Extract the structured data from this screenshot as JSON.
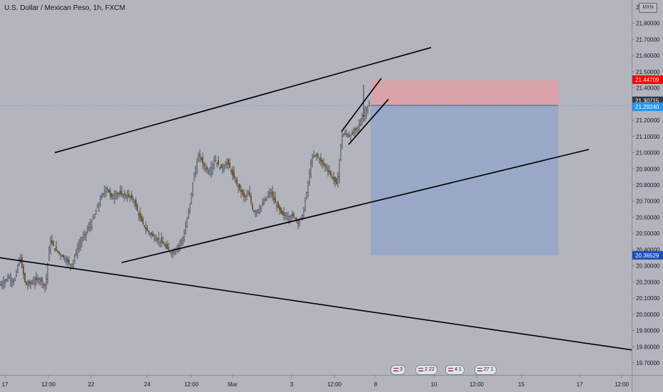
{
  "header": {
    "title": "U.S. Dollar / Mexican Peso, 1h, FXCM",
    "currency_badge": "MXN"
  },
  "price_axis": {
    "ticks": [
      "21.80000",
      "21.70000",
      "21.60000",
      "21.50000",
      "21.40000",
      "21.20000",
      "21.10000",
      "21.00000",
      "20.90000",
      "20.80000",
      "20.70000",
      "20.60000",
      "20.50000",
      "20.40000",
      "20.30000",
      "20.20000",
      "20.10000",
      "20.00000",
      "19.90000",
      "19.80000",
      "19.70000"
    ],
    "partial_top_tick": "2"
  },
  "price_tags": {
    "stop_loss": {
      "label": "21.44709",
      "color": "#ff0000"
    },
    "current": {
      "label": "21.30715",
      "color": "#363a45"
    },
    "entry": {
      "label": "21.29240",
      "color": "#2196f3"
    },
    "target": {
      "label": "20.36529",
      "color": "#1e4db7"
    }
  },
  "time_axis": {
    "labels": [
      "17",
      "12:00",
      "22",
      "24",
      "12:00",
      "Mar",
      "3",
      "12:00",
      "8",
      "10",
      "12:00",
      "15",
      "17",
      "12:00"
    ]
  },
  "events": [
    {
      "label": "3"
    },
    {
      "label": "2 22"
    },
    {
      "label": "4 1"
    },
    {
      "label": "27 1"
    }
  ],
  "chart_data": {
    "type": "candlestick",
    "symbol": "U.S. Dollar / Mexican Peso",
    "interval": "1h",
    "source": "FXCM",
    "ylim": [
      19.66,
      21.92
    ],
    "price_path": [
      [
        0,
        20.18
      ],
      [
        12,
        20.23
      ],
      [
        20,
        20.2
      ],
      [
        28,
        20.36
      ],
      [
        36,
        20.18
      ],
      [
        46,
        20.2
      ],
      [
        56,
        20.22
      ],
      [
        64,
        20.17
      ],
      [
        70,
        20.46
      ],
      [
        78,
        20.4
      ],
      [
        90,
        20.35
      ],
      [
        100,
        20.3
      ],
      [
        110,
        20.42
      ],
      [
        120,
        20.5
      ],
      [
        130,
        20.58
      ],
      [
        140,
        20.7
      ],
      [
        150,
        20.79
      ],
      [
        156,
        20.72
      ],
      [
        164,
        20.75
      ],
      [
        172,
        20.74
      ],
      [
        180,
        20.73
      ],
      [
        188,
        20.71
      ],
      [
        196,
        20.6
      ],
      [
        206,
        20.52
      ],
      [
        216,
        20.48
      ],
      [
        226,
        20.45
      ],
      [
        234,
        20.41
      ],
      [
        242,
        20.38
      ],
      [
        250,
        20.42
      ],
      [
        258,
        20.48
      ],
      [
        266,
        20.65
      ],
      [
        272,
        20.85
      ],
      [
        280,
        20.99
      ],
      [
        286,
        20.92
      ],
      [
        294,
        20.88
      ],
      [
        302,
        20.96
      ],
      [
        310,
        20.9
      ],
      [
        320,
        20.94
      ],
      [
        328,
        20.85
      ],
      [
        336,
        20.78
      ],
      [
        344,
        20.72
      ],
      [
        350,
        20.75
      ],
      [
        356,
        20.63
      ],
      [
        364,
        20.65
      ],
      [
        372,
        20.7
      ],
      [
        380,
        20.76
      ],
      [
        388,
        20.68
      ],
      [
        396,
        20.62
      ],
      [
        404,
        20.6
      ],
      [
        412,
        20.61
      ],
      [
        420,
        20.57
      ],
      [
        426,
        20.62
      ],
      [
        432,
        20.78
      ],
      [
        438,
        20.96
      ],
      [
        444,
        20.99
      ],
      [
        452,
        20.94
      ],
      [
        460,
        20.9
      ],
      [
        468,
        20.84
      ],
      [
        474,
        20.8
      ],
      [
        480,
        21.1
      ],
      [
        486,
        21.12
      ],
      [
        492,
        21.1
      ],
      [
        500,
        21.14
      ],
      [
        508,
        21.2
      ],
      [
        514,
        21.26
      ],
      [
        520,
        21.31
      ]
    ],
    "trendlines": [
      {
        "name": "upper-channel",
        "from": [
          77,
          21.0
        ],
        "to": [
          606,
          21.65
        ]
      },
      {
        "name": "lower-channel",
        "from": [
          171,
          20.32
        ],
        "to": [
          828,
          21.02
        ]
      },
      {
        "name": "long-descending",
        "from": [
          0,
          20.35
        ],
        "to": [
          888,
          19.78
        ]
      },
      {
        "name": "wedge-upper",
        "from": [
          480,
          21.13
        ],
        "to": [
          536,
          21.46
        ]
      },
      {
        "name": "wedge-lower",
        "from": [
          490,
          21.05
        ],
        "to": [
          546,
          21.33
        ]
      }
    ],
    "position": {
      "type": "short",
      "entry": 21.2924,
      "stop_loss": 21.44709,
      "take_profit": 20.36529,
      "x_start": 521,
      "x_end": 785
    },
    "stop_zone_color": "#d9a3a9",
    "target_zone_color": "#98a8c6"
  }
}
